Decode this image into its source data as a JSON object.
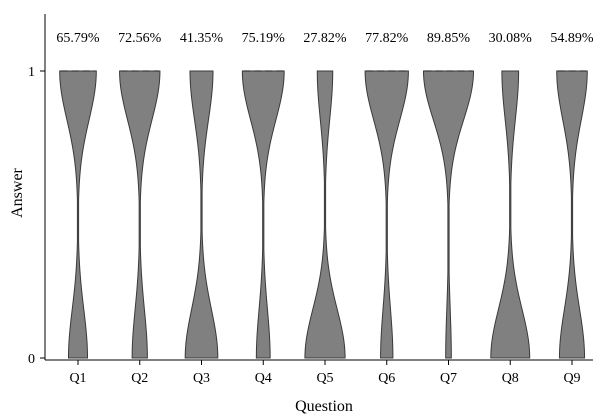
{
  "chart_data": {
    "type": "violin",
    "title": "",
    "xlabel": "Question",
    "ylabel": "Answer",
    "ylim": [
      0,
      1
    ],
    "yticks": [
      "0",
      "1"
    ],
    "categories": [
      "Q1",
      "Q2",
      "Q3",
      "Q4",
      "Q5",
      "Q6",
      "Q7",
      "Q8",
      "Q9"
    ],
    "proportion_answer_1": [
      65.79,
      72.56,
      41.35,
      75.19,
      27.82,
      77.82,
      89.85,
      30.08,
      54.89
    ],
    "value_labels": [
      "65.79%",
      "72.56%",
      "41.35%",
      "75.19%",
      "27.82%",
      "77.82%",
      "89.85%",
      "30.08%",
      "54.89%"
    ],
    "violin_color": "#808080",
    "edge_color": "#3a3a3a",
    "legend": "none",
    "grid": false
  }
}
